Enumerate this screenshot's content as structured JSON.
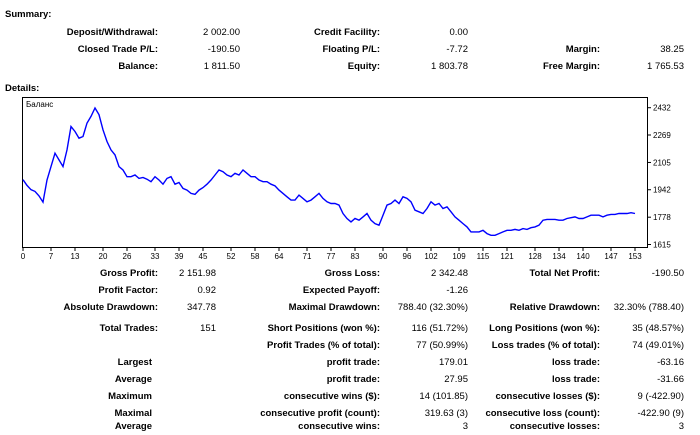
{
  "summary": {
    "title": "Summary:",
    "deposit_label": "Deposit/Withdrawal:",
    "deposit_value": "2 002.00",
    "credit_label": "Credit Facility:",
    "credit_value": "0.00",
    "closed_label": "Closed Trade P/L:",
    "closed_value": "-190.50",
    "floating_label": "Floating P/L:",
    "floating_value": "-7.72",
    "margin_label": "Margin:",
    "margin_value": "38.25",
    "balance_label": "Balance:",
    "balance_value": "1 811.50",
    "equity_label": "Equity:",
    "equity_value": "1 803.78",
    "free_margin_label": "Free Margin:",
    "free_margin_value": "1 765.53"
  },
  "details": {
    "title": "Details:",
    "gross_profit_label": "Gross Profit:",
    "gross_profit_value": "2 151.98",
    "gross_loss_label": "Gross Loss:",
    "gross_loss_value": "2 342.48",
    "total_net_label": "Total Net Profit:",
    "total_net_value": "-190.50",
    "profit_factor_label": "Profit Factor:",
    "profit_factor_value": "0.92",
    "expected_payoff_label": "Expected Payoff:",
    "expected_payoff_value": "-1.26",
    "abs_dd_label": "Absolute Drawdown:",
    "abs_dd_value": "347.78",
    "max_dd_label": "Maximal Drawdown:",
    "max_dd_value": "788.40 (32.30%)",
    "rel_dd_label": "Relative Drawdown:",
    "rel_dd_value": "32.30% (788.40)",
    "total_trades_label": "Total Trades:",
    "total_trades_value": "151",
    "short_label": "Short Positions (won %):",
    "short_value": "116 (51.72%)",
    "long_label": "Long Positions (won %):",
    "long_value": "35 (48.57%)",
    "profit_trades_label": "Profit Trades (% of total):",
    "profit_trades_value": "77 (50.99%)",
    "loss_trades_label": "Loss trades (% of total):",
    "loss_trades_value": "74 (49.01%)",
    "largest_label": "Largest",
    "largest_profit_label": "profit trade:",
    "largest_profit_value": "179.01",
    "largest_loss_label": "loss trade:",
    "largest_loss_value": "-63.16",
    "average_label": "Average",
    "average_profit_label": "profit trade:",
    "average_profit_value": "27.95",
    "average_loss_label": "loss trade:",
    "average_loss_value": "-31.66",
    "maximum_label": "Maximum",
    "max_wins_label": "consecutive wins ($):",
    "max_wins_value": "14 (101.85)",
    "max_losses_label": "consecutive losses ($):",
    "max_losses_value": "9 (-422.90)",
    "maximal_label": "Maximal",
    "maximal_profit_label": "consecutive profit (count):",
    "maximal_profit_value": "319.63 (3)",
    "maximal_loss_label": "consecutive loss (count):",
    "maximal_loss_value": "-422.90 (9)",
    "average2_label": "Average",
    "avg_wins_label": "consecutive wins:",
    "avg_wins_value": "3",
    "avg_losses_label": "consecutive losses:",
    "avg_losses_value": "3"
  },
  "chart_data": {
    "type": "line",
    "series": [
      {
        "name": "Баланс",
        "values": [
          2002,
          1968,
          1942,
          1932,
          1905,
          1868,
          2000,
          2080,
          2160,
          2120,
          2080,
          2180,
          2320,
          2290,
          2250,
          2260,
          2340,
          2380,
          2430,
          2390,
          2300,
          2230,
          2180,
          2150,
          2080,
          2060,
          2020,
          2020,
          2030,
          2010,
          2015,
          2005,
          1990,
          2020,
          2000,
          1975,
          2010,
          2020,
          1975,
          1985,
          1950,
          1940,
          1920,
          1915,
          1940,
          1955,
          1975,
          2000,
          2030,
          2060,
          2050,
          2030,
          2020,
          2040,
          2030,
          2060,
          2040,
          2020,
          2020,
          2000,
          1990,
          1990,
          1975,
          1965,
          1940,
          1920,
          1900,
          1880,
          1880,
          1910,
          1890,
          1870,
          1880,
          1900,
          1920,
          1890,
          1870,
          1860,
          1860,
          1850,
          1800,
          1770,
          1750,
          1770,
          1760,
          1780,
          1800,
          1760,
          1740,
          1730,
          1790,
          1850,
          1860,
          1880,
          1860,
          1900,
          1890,
          1870,
          1820,
          1810,
          1800,
          1830,
          1870,
          1850,
          1860,
          1830,
          1840,
          1810,
          1780,
          1760,
          1740,
          1720,
          1690,
          1690,
          1690,
          1700,
          1680,
          1670,
          1670,
          1680,
          1690,
          1700,
          1700,
          1705,
          1700,
          1710,
          1705,
          1715,
          1720,
          1730,
          1760,
          1765,
          1765,
          1765,
          1760,
          1760,
          1770,
          1775,
          1780,
          1770,
          1770,
          1780,
          1790,
          1790,
          1790,
          1780,
          1790,
          1795,
          1795,
          1800,
          1800,
          1800,
          1805,
          1800
        ]
      }
    ],
    "x_ticks": [
      "0",
      "7",
      "13",
      "20",
      "26",
      "33",
      "39",
      "45",
      "52",
      "58",
      "64",
      "71",
      "77",
      "83",
      "90",
      "96",
      "102",
      "109",
      "115",
      "121",
      "128",
      "134",
      "140",
      "147",
      "153"
    ],
    "y_ticks": [
      "2432",
      "2269",
      "2105",
      "1942",
      "1778",
      "1615"
    ],
    "xlim": [
      0,
      156
    ],
    "ylim": [
      1600,
      2490
    ],
    "line_color": "#0000ff"
  }
}
